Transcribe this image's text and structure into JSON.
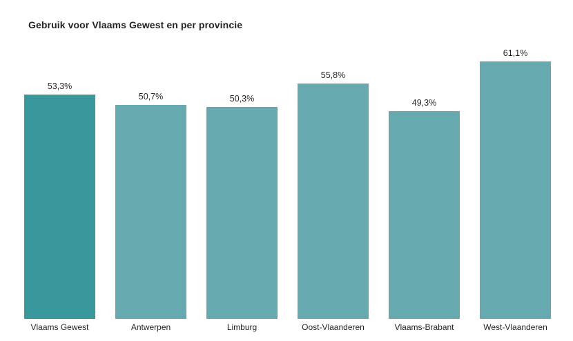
{
  "chart_data": {
    "type": "bar",
    "title": "Gebruik voor Vlaams Gewest en per provincie",
    "categories": [
      "Vlaams Gewest",
      "Antwerpen",
      "Limburg",
      "Oost-Vlaanderen",
      "Vlaams-Brabant",
      "West-Vlaanderen"
    ],
    "values": [
      53.3,
      50.7,
      50.3,
      55.8,
      49.3,
      61.1
    ],
    "value_labels": [
      "53,3%",
      "50,7%",
      "50,3%",
      "55,8%",
      "49,3%",
      "61,1%"
    ],
    "xlabel": "",
    "ylabel": "",
    "ylim": [
      0,
      65
    ],
    "grid": false,
    "legend": false,
    "highlight_index": 0,
    "colors": {
      "highlight_bar": "#39989c",
      "default_bar": "#66a9ae",
      "title_text": "#252423",
      "label_text": "#252423",
      "background": "#ffffff"
    }
  }
}
